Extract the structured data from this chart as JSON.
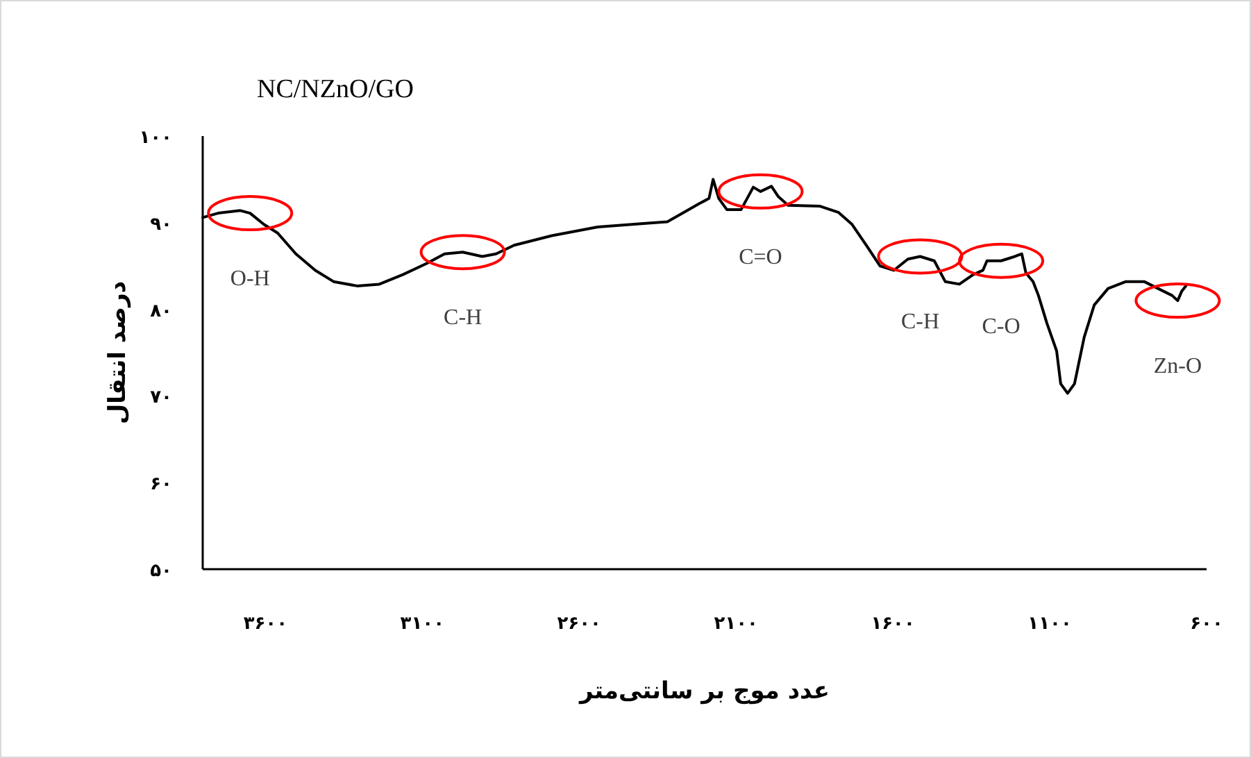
{
  "chart_data": {
    "type": "line",
    "title": "NC/NZnO/GO",
    "xlabel": "عدد موج بر سانتی‌متر",
    "ylabel": "درصد انتقال",
    "xlim": [
      3800,
      600
    ],
    "ylim": [
      50,
      100
    ],
    "xticks": [
      {
        "value": 3600,
        "label": "۳۶۰۰"
      },
      {
        "value": 3100,
        "label": "۳۱۰۰"
      },
      {
        "value": 2600,
        "label": "۲۶۰۰"
      },
      {
        "value": 2100,
        "label": "۲۱۰۰"
      },
      {
        "value": 1600,
        "label": "۱۶۰۰"
      },
      {
        "value": 1100,
        "label": "۱۱۰۰"
      },
      {
        "value": 600,
        "label": "۶۰۰"
      }
    ],
    "yticks": [
      {
        "value": 50,
        "label": "۵۰"
      },
      {
        "value": 60,
        "label": "۶۰"
      },
      {
        "value": 70,
        "label": "۷۰"
      },
      {
        "value": 80,
        "label": "۸۰"
      },
      {
        "value": 90,
        "label": "۹۰"
      },
      {
        "value": 100,
        "label": "۱۰۰"
      }
    ],
    "series": [
      {
        "color": "#000000",
        "x": [
          3800,
          3751,
          3680,
          3649,
          3605,
          3561,
          3503,
          3441,
          3383,
          3308,
          3237,
          3162,
          3086,
          3029,
          2971,
          2909,
          2865,
          2807,
          2687,
          2541,
          2395,
          2319,
          2275,
          2217,
          2186,
          2173,
          2155,
          2129,
          2084,
          2045,
          2022,
          1987,
          1965,
          1934,
          1832,
          1774,
          1730,
          1685,
          1641,
          1597,
          1552,
          1513,
          1468,
          1433,
          1388,
          1344,
          1313,
          1300,
          1255,
          1211,
          1189,
          1176,
          1153,
          1136,
          1109,
          1078,
          1065,
          1043,
          1021,
          990,
          958,
          914,
          857,
          799,
          755,
          710,
          692,
          679,
          666
        ],
        "values": [
          90.6,
          91.1,
          91.4,
          91.1,
          89.8,
          88.8,
          86.4,
          84.5,
          83.2,
          82.7,
          82.9,
          84.0,
          85.3,
          86.4,
          86.6,
          86.1,
          86.4,
          87.4,
          88.5,
          89.5,
          89.9,
          90.1,
          91.0,
          92.2,
          92.8,
          95.0,
          92.8,
          91.5,
          91.5,
          94.1,
          93.6,
          94.2,
          93.0,
          92.0,
          91.9,
          91.2,
          89.8,
          87.4,
          85.0,
          84.5,
          85.8,
          86.1,
          85.6,
          83.2,
          82.9,
          84.0,
          84.5,
          85.6,
          85.6,
          86.1,
          86.4,
          84.2,
          83.2,
          81.6,
          78.4,
          75.2,
          71.4,
          70.3,
          71.4,
          76.8,
          80.5,
          82.4,
          83.2,
          83.2,
          82.4,
          81.6,
          81.0,
          82.1,
          82.7
        ]
      }
    ],
    "annotations": [
      {
        "text": "O-H",
        "x": 3649,
        "y": 91.1
      },
      {
        "text": "C-H",
        "x": 2971,
        "y": 86.6
      },
      {
        "text": "C=O",
        "x": 2022,
        "y": 93.6
      },
      {
        "text": "C-H",
        "x": 1513,
        "y": 86.1
      },
      {
        "text": "C-O",
        "x": 1255,
        "y": 85.6
      },
      {
        "text": "Zn-O",
        "x": 692,
        "y": 81.0
      }
    ]
  }
}
